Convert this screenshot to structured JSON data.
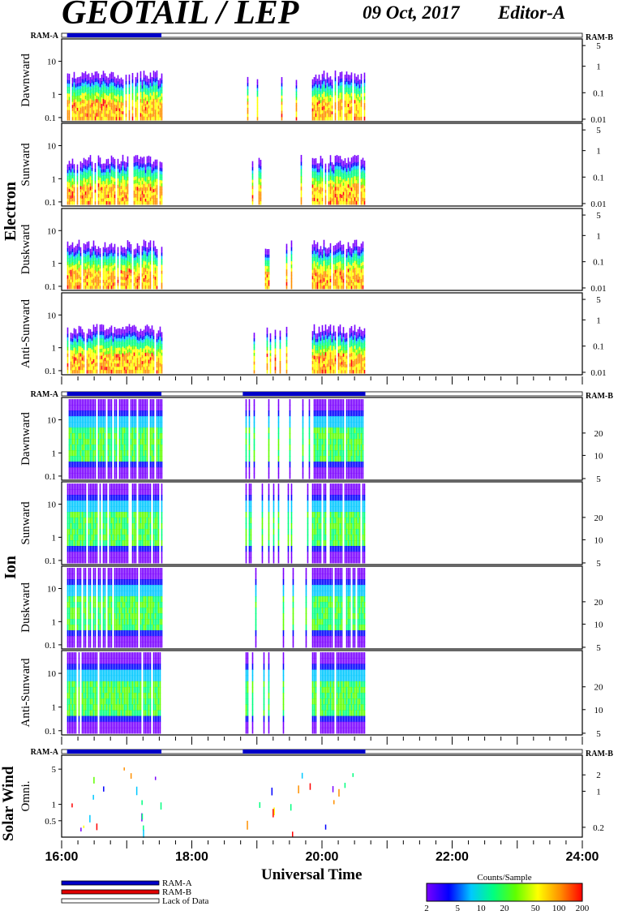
{
  "header": {
    "title": "GEOTAIL / LEP",
    "date": "09 Oct, 2017",
    "editor": "Editor-A"
  },
  "groups": {
    "electron": "Electron",
    "ion": "Ion",
    "solar_wind": "Solar Wind"
  },
  "ram_labels": {
    "electron_left": "RAM-A",
    "electron_right": "RAM-B",
    "ion_left": "RAM-A",
    "ion_right": "RAM-B",
    "sw_left": "RAM-A",
    "sw_right": "RAM-B"
  },
  "xaxis": {
    "title": "Universal Time",
    "ticks": [
      "16:00",
      "18:00",
      "20:00",
      "22:00",
      "24:00"
    ]
  },
  "legend": {
    "ram_a": "RAM-A",
    "ram_b": "RAM-B",
    "lack": "Lack of Data",
    "colorbar_title": "Counts/Sample",
    "colorbar_ticks": [
      "2",
      "5",
      "10",
      "20",
      "50",
      "100",
      "200"
    ]
  },
  "colors": {
    "ram_a": "#0000c8",
    "ram_b": "#e00000",
    "colorscale": [
      "#7a00ff",
      "#0000ff",
      "#00c8ff",
      "#00ff80",
      "#60ff00",
      "#ffff00",
      "#ff9000",
      "#ff0000"
    ]
  },
  "chart_data": {
    "type": "heatmap",
    "time_range": [
      "16:00",
      "24:00"
    ],
    "data_coverage": [
      [
        "16:05",
        "17:32"
      ],
      [
        "18:47",
        "20:40"
      ]
    ],
    "panels": [
      {
        "group": "Electron",
        "label": "Dawnward",
        "left_ticks": [
          "10",
          "1",
          "0.1"
        ],
        "right_ticks": [
          "5",
          "1",
          "0.1",
          "0.01"
        ]
      },
      {
        "group": "Electron",
        "label": "Sunward",
        "left_ticks": [
          "10",
          "1",
          "0.1"
        ],
        "right_ticks": [
          "5",
          "1",
          "0.1",
          "0.01"
        ]
      },
      {
        "group": "Electron",
        "label": "Duskward",
        "left_ticks": [
          "10",
          "1",
          "0.1"
        ],
        "right_ticks": [
          "5",
          "1",
          "0.1",
          "0.01"
        ]
      },
      {
        "group": "Electron",
        "label": "Anti-Sunward",
        "left_ticks": [
          "10",
          "1",
          "0.1"
        ],
        "right_ticks": [
          "5",
          "1",
          "0.1",
          "0.01"
        ]
      },
      {
        "group": "Ion",
        "label": "Dawnward",
        "left_ticks": [
          "10",
          "1",
          "0.1"
        ],
        "right_ticks": [
          "20",
          "10",
          "5"
        ]
      },
      {
        "group": "Ion",
        "label": "Sunward",
        "left_ticks": [
          "10",
          "1",
          "0.1"
        ],
        "right_ticks": [
          "20",
          "10",
          "5"
        ]
      },
      {
        "group": "Ion",
        "label": "Duskward",
        "left_ticks": [
          "10",
          "1",
          "0.1"
        ],
        "right_ticks": [
          "20",
          "10",
          "5"
        ]
      },
      {
        "group": "Ion",
        "label": "Anti-Sunward",
        "left_ticks": [
          "10",
          "1",
          "0.1"
        ],
        "right_ticks": [
          "20",
          "10",
          "5"
        ]
      },
      {
        "group": "Solar Wind",
        "label": "Omni.",
        "left_ticks": [
          "5",
          "1",
          "0.5"
        ],
        "right_ticks": [
          "2",
          "1",
          "0.2"
        ]
      }
    ],
    "colorbar": {
      "title": "Counts/Sample",
      "range": [
        2,
        200
      ],
      "scale": "log"
    }
  }
}
